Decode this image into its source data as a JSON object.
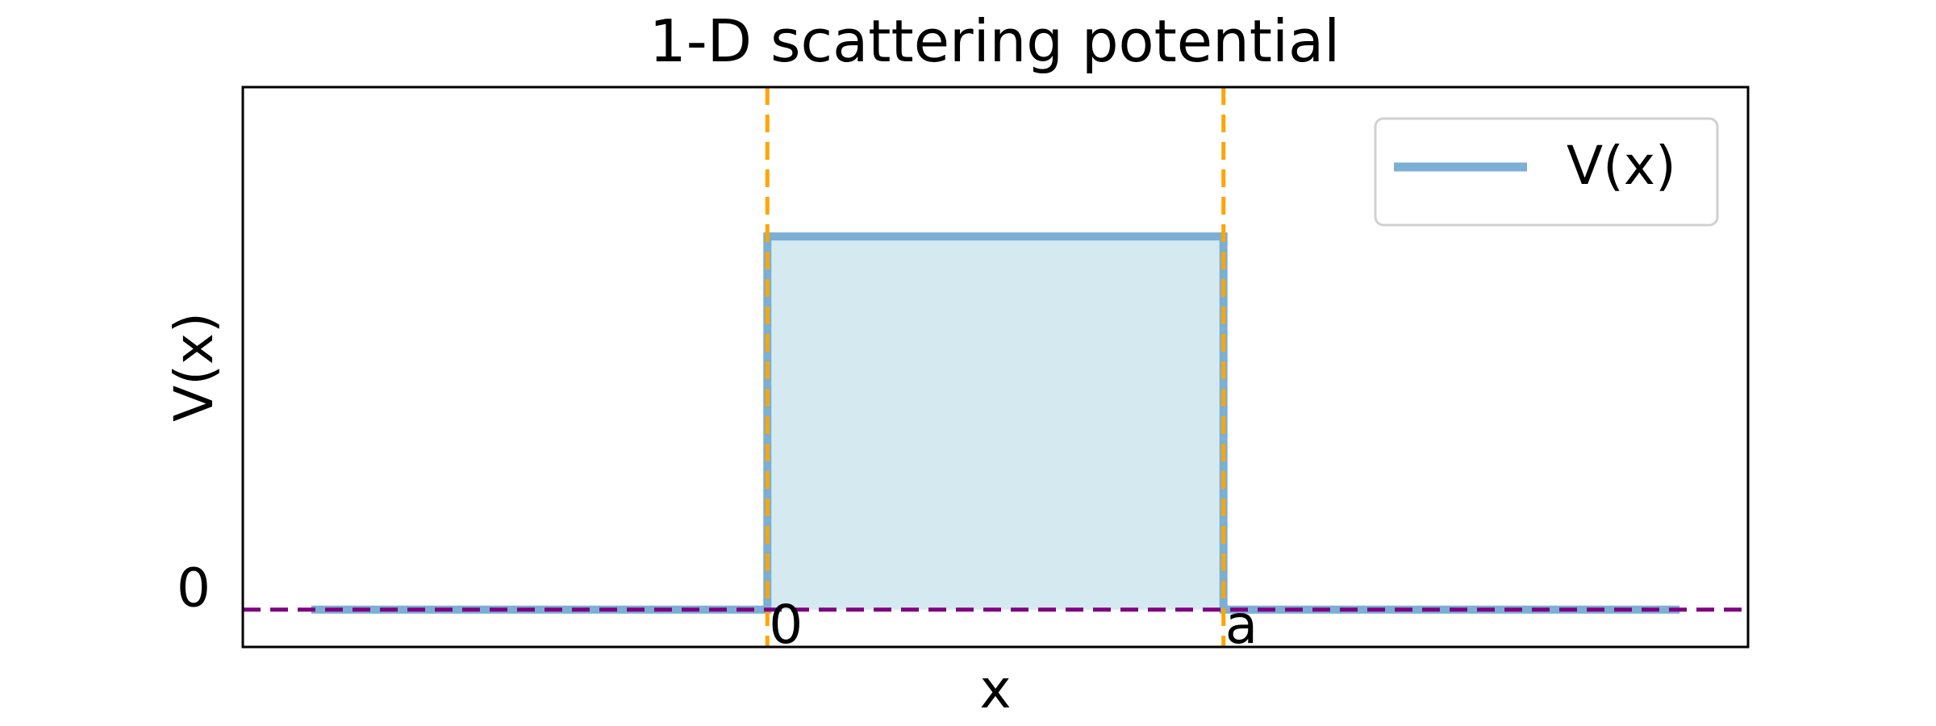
{
  "chart_data": {
    "type": "line",
    "title": "1-D scattering potential",
    "xlabel": "x",
    "ylabel": "V(x)",
    "x_ticks": [
      {
        "value": 0,
        "label": "0"
      },
      {
        "value": 1,
        "label": "a"
      }
    ],
    "y_ticks": [
      {
        "value": 0,
        "label": "0"
      }
    ],
    "xlim": [
      -1.15,
      2.15
    ],
    "ylim": [
      -0.1,
      1.4
    ],
    "grid": false,
    "legend": {
      "location": "upper right"
    },
    "series": [
      {
        "name": "V(x)",
        "color": "#7bafd4",
        "fill_color": "#d4eaf0",
        "x": [
          -1.0,
          0.0,
          0.0,
          1.0,
          1.0,
          2.0
        ],
        "y": [
          0.0,
          0.0,
          1.0,
          1.0,
          0.0,
          0.0
        ]
      }
    ],
    "reference_lines": [
      {
        "orientation": "vertical",
        "value": 0,
        "color": "#ffa500",
        "style": "dashed"
      },
      {
        "orientation": "vertical",
        "value": 1,
        "color": "#ffa500",
        "style": "dashed"
      },
      {
        "orientation": "horizontal",
        "value": 0,
        "color": "#800080",
        "style": "dashed"
      }
    ]
  }
}
